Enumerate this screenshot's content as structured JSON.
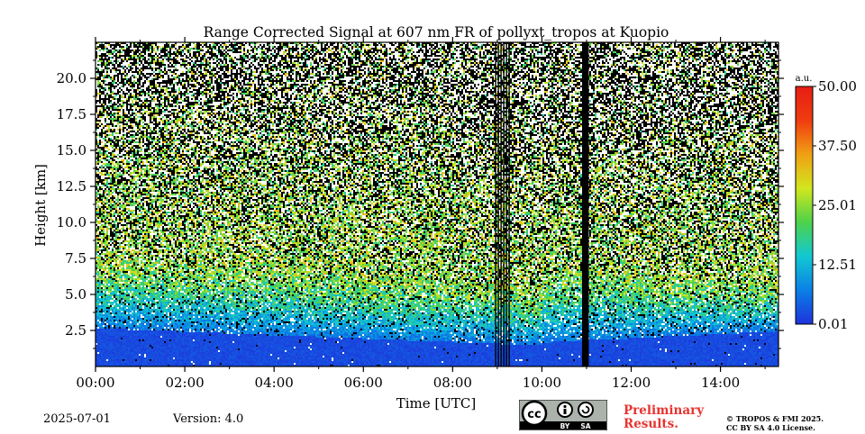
{
  "chart_data": {
    "type": "heatmap",
    "title": "Range Corrected Signal at 607 nm FR of pollyxt_tropos at Kuopio",
    "xlabel": "Time [UTC]",
    "ylabel": "Height [km]",
    "xlim": [
      0,
      15.3
    ],
    "ylim": [
      0,
      22.5
    ],
    "x_ticks": [
      0,
      2,
      4,
      6,
      8,
      10,
      12,
      14
    ],
    "x_tick_labels": [
      "00:00",
      "02:00",
      "04:00",
      "06:00",
      "08:00",
      "10:00",
      "12:00",
      "14:00"
    ],
    "y_ticks": [
      2.5,
      5.0,
      7.5,
      10.0,
      12.5,
      15.0,
      17.5,
      20.0
    ],
    "y_tick_labels": [
      "2.5",
      "5.0",
      "7.5",
      "10.0",
      "12.5",
      "15.0",
      "17.5",
      "20.0"
    ],
    "colorbar": {
      "label": "a.u.",
      "min": 0.01,
      "max": 50.0,
      "ticks": [
        0.01,
        12.51,
        25.01,
        37.5,
        50.0
      ],
      "tick_labels": [
        "0.01",
        "12.51",
        "25.01",
        "37.50",
        "50.00"
      ],
      "colormap": [
        "#1e32dc",
        "#0a80e6",
        "#12c8d2",
        "#4cd24a",
        "#d2e61e",
        "#f0a014",
        "#f03c10",
        "#e61e14"
      ]
    },
    "data_gaps_hours": [
      [
        8.95,
        9.3
      ],
      [
        10.9,
        11.05
      ]
    ],
    "noise_color": "#000000"
  },
  "footer": {
    "date": "2025-07-01",
    "version": "Version: 4.0",
    "preliminary": "Preliminary",
    "results": "Results.",
    "copyright_line1": "© TROPOS & FMI 2025.",
    "copyright_line2": "CC BY SA 4.0 License.",
    "license_by": "BY",
    "license_sa": "SA"
  }
}
